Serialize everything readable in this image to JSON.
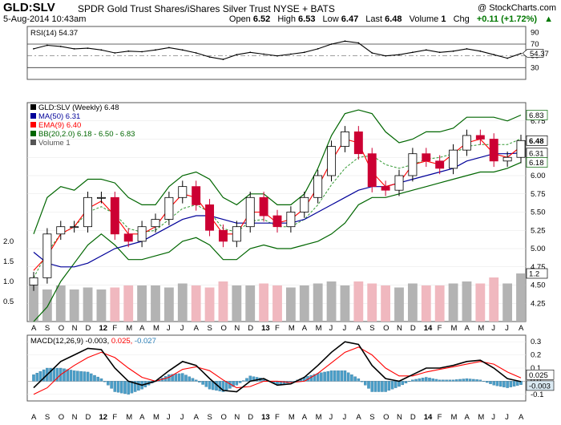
{
  "header": {
    "symbol": "GLD:SLV",
    "description": "SPDR Gold Trust Shares/iShares Silver Trust NYSE + BATS",
    "copyright": "@ StockCharts.com",
    "date": "5-Aug-2014 10:43am",
    "open_label": "Open",
    "open": "6.52",
    "high_label": "High",
    "high": "6.53",
    "low_label": "Low",
    "low": "6.47",
    "last_label": "Last",
    "last": "6.48",
    "volume_label": "Volume",
    "volume": "1",
    "chg_label": "Chg",
    "chg": "+0.11 (+1.72%)",
    "chg_icon": "up-triangle-icon"
  },
  "colors": {
    "candle_up": "#000000",
    "candle_down": "#cc0033",
    "ma50": "#000099",
    "ema9": "#ff0000",
    "bb": "#006600",
    "bb_mid": "#339933",
    "rsi": "#000000",
    "macd": "#000000",
    "signal": "#ff0000",
    "hist": "#4a9ec8"
  },
  "chart_data": [
    {
      "type": "line",
      "title": "RSI(14) 54.37",
      "indicator": "RSI(14)",
      "last_value": 54.37,
      "ylim": [
        10,
        100
      ],
      "yticks": [
        90,
        70,
        50,
        30
      ],
      "reference_lines": [
        70,
        30
      ],
      "x": [
        "A",
        "S",
        "O",
        "N",
        "D",
        "12",
        "F",
        "M",
        "A",
        "M",
        "J",
        "J",
        "A",
        "S",
        "O",
        "N",
        "D",
        "13",
        "F",
        "M",
        "A",
        "M",
        "J",
        "J",
        "A",
        "S",
        "O",
        "N",
        "D",
        "14",
        "F",
        "M",
        "A",
        "M",
        "J",
        "J",
        "A"
      ],
      "values": [
        62,
        68,
        66,
        62,
        63,
        60,
        55,
        58,
        57,
        60,
        64,
        60,
        55,
        48,
        44,
        52,
        56,
        53,
        50,
        53,
        56,
        62,
        70,
        75,
        72,
        55,
        50,
        52,
        56,
        60,
        56,
        58,
        62,
        58,
        52,
        46,
        54
      ]
    },
    {
      "type": "candlestick",
      "title": "GLD:SLV (Weekly) 6.48",
      "legend": [
        "MA(50) 6.31",
        "EMA(9) 6.40",
        "BB(20,2.0) 6.18 - 6.50 - 6.83",
        "Volume 1"
      ],
      "ylim": [
        4.0,
        7.0
      ],
      "yticks": [
        6.75,
        6.5,
        6.25,
        6.0,
        5.75,
        5.5,
        5.25,
        5.0,
        4.75,
        4.5,
        4.25
      ],
      "volume_ticks": [
        "2.0",
        "1.5",
        "1.0",
        "0.5"
      ],
      "last_labels": [
        {
          "text": "6.83",
          "value": 6.83,
          "kind": "bb"
        },
        {
          "text": "6.48",
          "value": 6.48,
          "kind": "last"
        },
        {
          "text": "6.31",
          "value": 6.31,
          "kind": "ma"
        },
        {
          "text": "6.18",
          "value": 6.18,
          "kind": "bb"
        },
        {
          "text": "1.2",
          "value": 1.2,
          "kind": "volume"
        }
      ],
      "x": [
        "A",
        "S",
        "O",
        "N",
        "D",
        "12",
        "F",
        "M",
        "A",
        "M",
        "J",
        "J",
        "A",
        "S",
        "O",
        "N",
        "D",
        "13",
        "F",
        "M",
        "A",
        "M",
        "J",
        "J",
        "A",
        "S",
        "O",
        "N",
        "D",
        "14",
        "F",
        "M",
        "A",
        "M",
        "J",
        "J",
        "A"
      ],
      "close": [
        4.6,
        5.2,
        5.3,
        5.3,
        5.7,
        5.7,
        5.2,
        5.1,
        5.3,
        5.4,
        5.7,
        5.85,
        5.6,
        5.25,
        5.1,
        5.3,
        5.7,
        5.45,
        5.3,
        5.5,
        5.7,
        6.0,
        6.4,
        6.6,
        6.3,
        5.85,
        5.8,
        6.0,
        6.3,
        6.2,
        6.1,
        6.35,
        6.55,
        6.5,
        6.2,
        6.25,
        6.48
      ],
      "ma50": [
        4.95,
        4.8,
        4.75,
        4.75,
        4.8,
        4.9,
        5.0,
        5.05,
        5.1,
        5.2,
        5.3,
        5.4,
        5.45,
        5.45,
        5.4,
        5.35,
        5.35,
        5.35,
        5.35,
        5.35,
        5.4,
        5.5,
        5.6,
        5.7,
        5.8,
        5.85,
        5.85,
        5.9,
        5.95,
        6.0,
        6.05,
        6.1,
        6.2,
        6.25,
        6.3,
        6.3,
        6.31
      ],
      "ema9": [
        4.7,
        4.9,
        5.2,
        5.3,
        5.55,
        5.65,
        5.45,
        5.2,
        5.2,
        5.3,
        5.55,
        5.75,
        5.7,
        5.45,
        5.2,
        5.2,
        5.5,
        5.5,
        5.35,
        5.4,
        5.55,
        5.85,
        6.2,
        6.5,
        6.45,
        6.05,
        5.85,
        5.9,
        6.15,
        6.2,
        6.15,
        6.3,
        6.45,
        6.5,
        6.3,
        6.25,
        6.4
      ],
      "bb_upper": [
        5.2,
        5.7,
        5.85,
        5.8,
        5.95,
        5.95,
        5.9,
        5.7,
        5.6,
        5.6,
        5.85,
        6.0,
        6.05,
        5.95,
        5.7,
        5.6,
        5.75,
        5.75,
        5.6,
        5.6,
        5.75,
        6.1,
        6.55,
        6.85,
        6.9,
        6.85,
        6.6,
        6.45,
        6.5,
        6.6,
        6.6,
        6.65,
        6.8,
        6.8,
        6.8,
        6.75,
        6.83
      ],
      "bb_lower": [
        4.0,
        4.2,
        4.55,
        4.8,
        5.05,
        5.2,
        5.05,
        4.85,
        4.85,
        4.9,
        4.95,
        5.1,
        5.15,
        5.05,
        4.85,
        4.85,
        5.0,
        5.05,
        5.0,
        5.0,
        5.05,
        5.1,
        5.2,
        5.35,
        5.6,
        5.7,
        5.7,
        5.75,
        5.8,
        5.85,
        5.9,
        5.95,
        6.0,
        6.05,
        6.05,
        6.1,
        6.18
      ],
      "volume": [
        0.9,
        0.8,
        0.9,
        0.8,
        0.85,
        0.8,
        0.85,
        0.9,
        0.9,
        0.9,
        0.85,
        0.95,
        0.9,
        0.85,
        1.0,
        0.9,
        0.9,
        0.95,
        0.9,
        0.85,
        0.9,
        0.95,
        1.0,
        0.9,
        1.0,
        0.95,
        0.9,
        0.85,
        0.95,
        0.9,
        0.9,
        0.95,
        1.0,
        0.95,
        1.1,
        0.95,
        1.2
      ]
    },
    {
      "type": "line",
      "title": "MACD(12,26,9) -0.003, 0.025, -0.027",
      "legend": [
        "MACD(12,26,9) -0.003",
        "0.025",
        "-0.027"
      ],
      "ylim": [
        -0.15,
        0.35
      ],
      "yticks": [
        "0.3",
        "0.2",
        "0.1",
        "0.0",
        "-0.1"
      ],
      "last_labels": [
        {
          "text": "0.025",
          "value": 0.025,
          "kind": "signal"
        },
        {
          "text": "-0.003",
          "value": -0.003,
          "kind": "macd"
        }
      ],
      "x": [
        "A",
        "S",
        "O",
        "N",
        "D",
        "12",
        "F",
        "M",
        "A",
        "M",
        "J",
        "J",
        "A",
        "S",
        "O",
        "N",
        "D",
        "13",
        "F",
        "M",
        "A",
        "M",
        "J",
        "J",
        "A",
        "S",
        "O",
        "N",
        "D",
        "14",
        "F",
        "M",
        "A",
        "M",
        "J",
        "J",
        "A"
      ],
      "macd": [
        -0.05,
        0.05,
        0.15,
        0.2,
        0.25,
        0.24,
        0.1,
        0.0,
        -0.03,
        0.0,
        0.08,
        0.15,
        0.12,
        0.02,
        -0.07,
        -0.08,
        0.0,
        0.02,
        -0.03,
        -0.02,
        0.03,
        0.12,
        0.22,
        0.3,
        0.28,
        0.12,
        0.02,
        0.0,
        0.05,
        0.1,
        0.1,
        0.12,
        0.15,
        0.16,
        0.1,
        0.02,
        -0.003
      ],
      "signal": [
        -0.1,
        -0.05,
        0.05,
        0.12,
        0.18,
        0.22,
        0.18,
        0.1,
        0.03,
        0.0,
        0.03,
        0.09,
        0.11,
        0.08,
        0.01,
        -0.05,
        -0.04,
        0.0,
        0.0,
        -0.01,
        0.0,
        0.06,
        0.14,
        0.22,
        0.26,
        0.2,
        0.1,
        0.04,
        0.04,
        0.07,
        0.09,
        0.11,
        0.13,
        0.15,
        0.13,
        0.07,
        0.025
      ],
      "histogram": [
        0.05,
        0.1,
        0.1,
        0.08,
        0.07,
        0.02,
        -0.08,
        -0.1,
        -0.06,
        0.0,
        0.05,
        0.06,
        0.01,
        -0.06,
        -0.08,
        -0.03,
        0.04,
        0.02,
        -0.03,
        -0.01,
        0.03,
        0.06,
        0.08,
        0.08,
        0.02,
        -0.08,
        -0.08,
        -0.04,
        0.01,
        0.03,
        0.01,
        0.01,
        0.02,
        0.01,
        -0.03,
        -0.05,
        -0.027
      ]
    }
  ],
  "x_axis_labels": [
    "A",
    "S",
    "O",
    "N",
    "D",
    "12",
    "F",
    "M",
    "A",
    "M",
    "J",
    "J",
    "A",
    "S",
    "O",
    "N",
    "D",
    "13",
    "F",
    "M",
    "A",
    "M",
    "J",
    "J",
    "A",
    "S",
    "O",
    "N",
    "D",
    "14",
    "F",
    "M",
    "A",
    "M",
    "J",
    "J",
    "A"
  ]
}
